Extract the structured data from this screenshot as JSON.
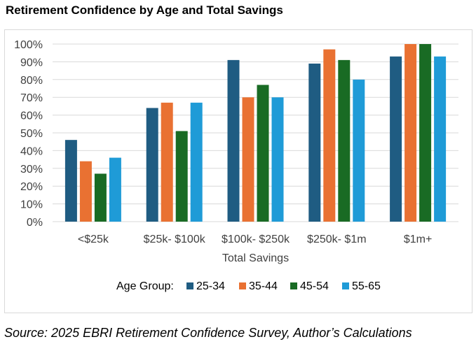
{
  "chart_data": {
    "type": "bar",
    "title": "Retirement Confidence by Age and Total Savings",
    "xlabel": "Total Savings",
    "ylabel": "",
    "ylim": [
      0,
      100
    ],
    "yticks": [
      "0%",
      "10%",
      "20%",
      "30%",
      "40%",
      "50%",
      "60%",
      "70%",
      "80%",
      "90%",
      "100%"
    ],
    "categories": [
      "<$25k",
      "$25k- $100k",
      "$100k- $250k",
      "$250k- $1m",
      "$1m+"
    ],
    "legend_title": "Age Group:",
    "legend_position": "bottom",
    "grid": true,
    "series": [
      {
        "name": "25-34",
        "color": "#1f5c82",
        "values": [
          46,
          64,
          91,
          89,
          93
        ]
      },
      {
        "name": "35-44",
        "color": "#e97132",
        "values": [
          34,
          67,
          70,
          97,
          100
        ]
      },
      {
        "name": "45-54",
        "color": "#196b24",
        "values": [
          27,
          51,
          77,
          91,
          100
        ]
      },
      {
        "name": "55-65",
        "color": "#1f9bd7",
        "values": [
          36,
          67,
          70,
          80,
          93
        ]
      }
    ]
  },
  "source": "Source: 2025 EBRI Retirement Confidence Survey, Author’s Calculations"
}
